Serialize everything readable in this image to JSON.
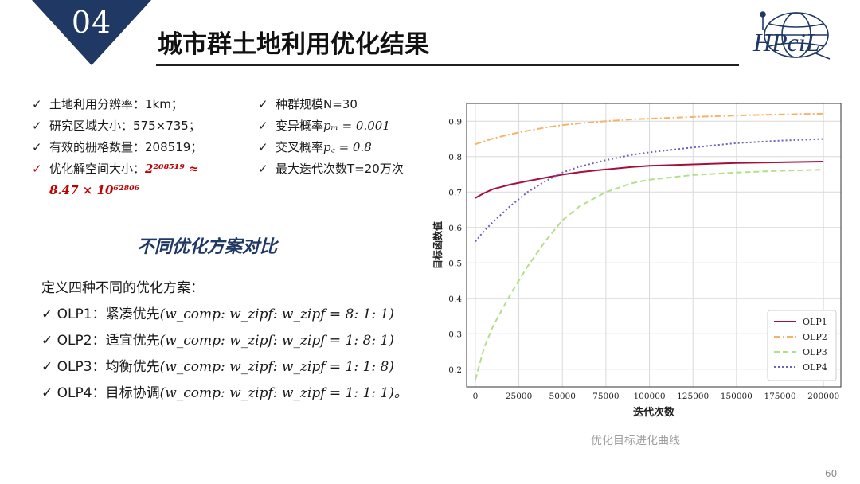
{
  "header": {
    "badge_number": "04",
    "title": "城市群土地利用优化结果",
    "logo_text": "HPciL"
  },
  "specs_left": [
    {
      "label": "土地利用分辨率：",
      "value": "1km；"
    },
    {
      "label": "研究区域大小：",
      "value": "575×735；"
    },
    {
      "label": "有效的栅格数量：",
      "value": "208519；"
    },
    {
      "label": "优化解空间大小：",
      "value": "2²⁰⁸⁵¹⁹ ≈",
      "line2": "8.47 × 10⁶²⁸⁰⁶"
    }
  ],
  "specs_right": [
    {
      "label": "种群规模N=30"
    },
    {
      "label": "变异概率",
      "math": "pₘ = 0.001"
    },
    {
      "label": "交叉概率",
      "math": "p꜀ = 0.8"
    },
    {
      "label": "最大迭代次数T=20万次"
    }
  ],
  "section_heading": "不同优化方案对比",
  "schemes_intro": "定义四种不同的优化方案：",
  "schemes": [
    {
      "label": "OLP1：紧凑优先",
      "formula": "(w_comp: w_zipf: w_zipf = 8: 1: 1)"
    },
    {
      "label": "OLP2：适宜优先",
      "formula": "(w_comp: w_zipf: w_zipf = 1: 8: 1)"
    },
    {
      "label": "OLP3：均衡优先",
      "formula": "(w_comp: w_zipf: w_zipf = 1: 1: 8)"
    },
    {
      "label": "OLP4：目标协调",
      "formula": "(w_comp: w_zipf: w_zipf = 1: 1: 1)。"
    }
  ],
  "checkmark": "✓",
  "chart_caption": "优化目标进化曲线",
  "page_number": "60",
  "colors": {
    "navy": "#1f3864",
    "red": "#c00000",
    "olp1": "#a50f3c",
    "olp2": "#f4b36b",
    "olp3": "#b2df8a",
    "olp4": "#6f5fbf"
  },
  "chart_data": {
    "type": "line",
    "xlabel": "迭代次数",
    "ylabel": "目标函数值",
    "xlim": [
      -5000,
      210000
    ],
    "ylim": [
      0.15,
      0.95
    ],
    "xticks": [
      0,
      25000,
      50000,
      75000,
      100000,
      125000,
      150000,
      175000,
      200000
    ],
    "yticks": [
      0.2,
      0.3,
      0.4,
      0.5,
      0.6,
      0.7,
      0.8,
      0.9
    ],
    "grid": true,
    "legend_position": "lower-right",
    "x": [
      0,
      5000,
      10000,
      20000,
      30000,
      40000,
      50000,
      60000,
      75000,
      90000,
      100000,
      125000,
      150000,
      175000,
      200000
    ],
    "series": [
      {
        "name": "OLP1",
        "style": "solid",
        "color": "#a50f3c",
        "values": [
          0.683,
          0.697,
          0.708,
          0.721,
          0.731,
          0.74,
          0.749,
          0.756,
          0.764,
          0.771,
          0.774,
          0.778,
          0.782,
          0.784,
          0.786
        ]
      },
      {
        "name": "OLP2",
        "style": "dashdot",
        "color": "#f4b36b",
        "values": [
          0.835,
          0.843,
          0.851,
          0.863,
          0.873,
          0.882,
          0.889,
          0.894,
          0.9,
          0.905,
          0.907,
          0.912,
          0.916,
          0.919,
          0.921
        ]
      },
      {
        "name": "OLP3",
        "style": "dashed",
        "color": "#b2df8a",
        "values": [
          0.17,
          0.26,
          0.32,
          0.41,
          0.49,
          0.56,
          0.62,
          0.66,
          0.7,
          0.725,
          0.735,
          0.748,
          0.755,
          0.76,
          0.763
        ]
      },
      {
        "name": "OLP4",
        "style": "dotted",
        "color": "#6f5fbf",
        "values": [
          0.56,
          0.59,
          0.615,
          0.66,
          0.7,
          0.73,
          0.755,
          0.772,
          0.79,
          0.805,
          0.812,
          0.826,
          0.838,
          0.845,
          0.85
        ]
      }
    ]
  }
}
